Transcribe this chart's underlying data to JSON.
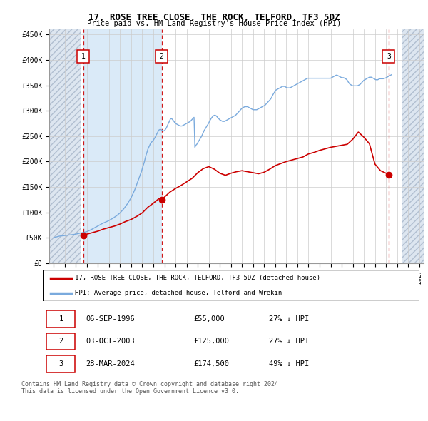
{
  "title": "17, ROSE TREE CLOSE, THE ROCK, TELFORD, TF3 5DZ",
  "subtitle": "Price paid vs. HM Land Registry's House Price Index (HPI)",
  "ylim": [
    0,
    460000
  ],
  "yticks": [
    0,
    50000,
    100000,
    150000,
    200000,
    250000,
    300000,
    350000,
    400000,
    450000
  ],
  "ytick_labels": [
    "£0",
    "£50K",
    "£100K",
    "£150K",
    "£200K",
    "£250K",
    "£300K",
    "£350K",
    "£400K",
    "£450K"
  ],
  "xlim_start": 1993.6,
  "xlim_end": 2027.4,
  "grid_color": "#cccccc",
  "sale_dates_num": [
    1996.68,
    2003.75,
    2024.24
  ],
  "sale_prices": [
    55000,
    125000,
    174500
  ],
  "sale_labels": [
    "1",
    "2",
    "3"
  ],
  "legend_property_label": "17, ROSE TREE CLOSE, THE ROCK, TELFORD, TF3 5DZ (detached house)",
  "legend_hpi_label": "HPI: Average price, detached house, Telford and Wrekin",
  "property_line_color": "#cc0000",
  "hpi_line_color": "#7aaadd",
  "shade_start": 1996.68,
  "shade_end": 2003.75,
  "table_rows": [
    {
      "num": "1",
      "date": "06-SEP-1996",
      "price": "£55,000",
      "hpi": "27% ↓ HPI"
    },
    {
      "num": "2",
      "date": "03-OCT-2003",
      "price": "£125,000",
      "hpi": "27% ↓ HPI"
    },
    {
      "num": "3",
      "date": "28-MAR-2024",
      "price": "£174,500",
      "hpi": "49% ↓ HPI"
    }
  ],
  "footer_text": "Contains HM Land Registry data © Crown copyright and database right 2024.\nThis data is licensed under the Open Government Licence v3.0.",
  "hpi_years": [
    1994,
    1994.08,
    1994.17,
    1994.25,
    1994.33,
    1994.42,
    1994.5,
    1994.58,
    1994.67,
    1994.75,
    1994.83,
    1994.92,
    1995,
    1995.08,
    1995.17,
    1995.25,
    1995.33,
    1995.42,
    1995.5,
    1995.58,
    1995.67,
    1995.75,
    1995.83,
    1995.92,
    1996,
    1996.08,
    1996.17,
    1996.25,
    1996.33,
    1996.42,
    1996.5,
    1996.58,
    1996.67,
    1996.75,
    1996.83,
    1996.92,
    1997,
    1997.08,
    1997.17,
    1997.25,
    1997.33,
    1997.42,
    1997.5,
    1997.58,
    1997.67,
    1997.75,
    1997.83,
    1997.92,
    1998,
    1998.08,
    1998.17,
    1998.25,
    1998.33,
    1998.42,
    1998.5,
    1998.58,
    1998.67,
    1998.75,
    1998.83,
    1998.92,
    1999,
    1999.08,
    1999.17,
    1999.25,
    1999.33,
    1999.42,
    1999.5,
    1999.58,
    1999.67,
    1999.75,
    1999.83,
    1999.92,
    2000,
    2000.08,
    2000.17,
    2000.25,
    2000.33,
    2000.42,
    2000.5,
    2000.58,
    2000.67,
    2000.75,
    2000.83,
    2000.92,
    2001,
    2001.08,
    2001.17,
    2001.25,
    2001.33,
    2001.42,
    2001.5,
    2001.58,
    2001.67,
    2001.75,
    2001.83,
    2001.92,
    2002,
    2002.08,
    2002.17,
    2002.25,
    2002.33,
    2002.42,
    2002.5,
    2002.58,
    2002.67,
    2002.75,
    2002.83,
    2002.92,
    2003,
    2003.08,
    2003.17,
    2003.25,
    2003.33,
    2003.42,
    2003.5,
    2003.58,
    2003.67,
    2003.75,
    2003.83,
    2003.92,
    2004,
    2004.08,
    2004.17,
    2004.25,
    2004.33,
    2004.42,
    2004.5,
    2004.58,
    2004.67,
    2004.75,
    2004.83,
    2004.92,
    2005,
    2005.08,
    2005.17,
    2005.25,
    2005.33,
    2005.42,
    2005.5,
    2005.58,
    2005.67,
    2005.75,
    2005.83,
    2005.92,
    2006,
    2006.08,
    2006.17,
    2006.25,
    2006.33,
    2006.42,
    2006.5,
    2006.58,
    2006.67,
    2006.75,
    2006.83,
    2006.92,
    2007,
    2007.08,
    2007.17,
    2007.25,
    2007.33,
    2007.42,
    2007.5,
    2007.58,
    2007.67,
    2007.75,
    2007.83,
    2007.92,
    2008,
    2008.08,
    2008.17,
    2008.25,
    2008.33,
    2008.42,
    2008.5,
    2008.58,
    2008.67,
    2008.75,
    2008.83,
    2008.92,
    2009,
    2009.08,
    2009.17,
    2009.25,
    2009.33,
    2009.42,
    2009.5,
    2009.58,
    2009.67,
    2009.75,
    2009.83,
    2009.92,
    2010,
    2010.08,
    2010.17,
    2010.25,
    2010.33,
    2010.42,
    2010.5,
    2010.58,
    2010.67,
    2010.75,
    2010.83,
    2010.92,
    2011,
    2011.08,
    2011.17,
    2011.25,
    2011.33,
    2011.42,
    2011.5,
    2011.58,
    2011.67,
    2011.75,
    2011.83,
    2011.92,
    2012,
    2012.08,
    2012.17,
    2012.25,
    2012.33,
    2012.42,
    2012.5,
    2012.58,
    2012.67,
    2012.75,
    2012.83,
    2012.92,
    2013,
    2013.08,
    2013.17,
    2013.25,
    2013.33,
    2013.42,
    2013.5,
    2013.58,
    2013.67,
    2013.75,
    2013.83,
    2013.92,
    2014,
    2014.08,
    2014.17,
    2014.25,
    2014.33,
    2014.42,
    2014.5,
    2014.58,
    2014.67,
    2014.75,
    2014.83,
    2014.92,
    2015,
    2015.08,
    2015.17,
    2015.25,
    2015.33,
    2015.42,
    2015.5,
    2015.58,
    2015.67,
    2015.75,
    2015.83,
    2015.92,
    2016,
    2016.08,
    2016.17,
    2016.25,
    2016.33,
    2016.42,
    2016.5,
    2016.58,
    2016.67,
    2016.75,
    2016.83,
    2016.92,
    2017,
    2017.08,
    2017.17,
    2017.25,
    2017.33,
    2017.42,
    2017.5,
    2017.58,
    2017.67,
    2017.75,
    2017.83,
    2017.92,
    2018,
    2018.08,
    2018.17,
    2018.25,
    2018.33,
    2018.42,
    2018.5,
    2018.58,
    2018.67,
    2018.75,
    2018.83,
    2018.92,
    2019,
    2019.08,
    2019.17,
    2019.25,
    2019.33,
    2019.42,
    2019.5,
    2019.58,
    2019.67,
    2019.75,
    2019.83,
    2019.92,
    2020,
    2020.08,
    2020.17,
    2020.25,
    2020.33,
    2020.42,
    2020.5,
    2020.58,
    2020.67,
    2020.75,
    2020.83,
    2020.92,
    2021,
    2021.08,
    2021.17,
    2021.25,
    2021.33,
    2021.42,
    2021.5,
    2021.58,
    2021.67,
    2021.75,
    2021.83,
    2021.92,
    2022,
    2022.08,
    2022.17,
    2022.25,
    2022.33,
    2022.42,
    2022.5,
    2022.58,
    2022.67,
    2022.75,
    2022.83,
    2022.92,
    2023,
    2023.08,
    2023.17,
    2023.25,
    2023.33,
    2023.42,
    2023.5,
    2023.58,
    2023.67,
    2023.75,
    2023.83,
    2023.92,
    2024,
    2024.08,
    2024.17,
    2024.25,
    2024.33,
    2024.42,
    2024.5
  ],
  "hpi_vals": [
    50000,
    50500,
    51000,
    51500,
    52000,
    52500,
    53000,
    53200,
    53400,
    53600,
    53800,
    54000,
    54200,
    54500,
    54800,
    55000,
    55200,
    55400,
    55600,
    55800,
    56000,
    56200,
    56400,
    56600,
    57000,
    57400,
    57800,
    58200,
    58600,
    59000,
    59400,
    59800,
    60300,
    60800,
    61200,
    61600,
    62000,
    62800,
    63600,
    64500,
    65400,
    66200,
    67200,
    68200,
    69200,
    70200,
    71200,
    72200,
    73200,
    74200,
    75200,
    76200,
    77200,
    78200,
    79000,
    79800,
    80600,
    81400,
    82200,
    83000,
    84000,
    85000,
    86000,
    87000,
    88000,
    89200,
    90500,
    91800,
    93000,
    94500,
    96000,
    97500,
    99000,
    101000,
    103000,
    105000,
    107000,
    109500,
    112000,
    114500,
    117000,
    120000,
    123000,
    126000,
    129000,
    133000,
    137000,
    141000,
    145000,
    150000,
    155000,
    160000,
    165000,
    170000,
    175000,
    180000,
    186000,
    192000,
    198000,
    205000,
    212000,
    218000,
    224000,
    228000,
    232000,
    236000,
    238000,
    240000,
    242000,
    245000,
    248000,
    252000,
    255000,
    259000,
    262000,
    263000,
    263000,
    262000,
    261000,
    260000,
    261000,
    263000,
    266000,
    270000,
    274000,
    278000,
    282000,
    285000,
    284000,
    282000,
    280000,
    277000,
    275000,
    274000,
    273000,
    272000,
    271000,
    270000,
    270000,
    270000,
    271000,
    272000,
    273000,
    274000,
    275000,
    276000,
    277000,
    278000,
    279000,
    281000,
    283000,
    285000,
    287000,
    228000,
    232000,
    234000,
    237000,
    240000,
    243000,
    246000,
    249000,
    253000,
    257000,
    261000,
    264000,
    267000,
    270000,
    273000,
    276000,
    280000,
    283000,
    286000,
    288000,
    290000,
    291000,
    291000,
    290000,
    288000,
    286000,
    284000,
    282000,
    281000,
    280000,
    279000,
    279000,
    279000,
    280000,
    281000,
    282000,
    283000,
    284000,
    285000,
    286000,
    287000,
    288000,
    289000,
    290000,
    291000,
    293000,
    295000,
    297000,
    299000,
    301000,
    303000,
    305000,
    306000,
    307000,
    308000,
    308000,
    308000,
    308000,
    307000,
    306000,
    305000,
    304000,
    303000,
    302000,
    302000,
    302000,
    302000,
    302000,
    303000,
    304000,
    305000,
    306000,
    307000,
    308000,
    309000,
    310000,
    311000,
    313000,
    315000,
    317000,
    319000,
    321000,
    323000,
    326000,
    330000,
    333000,
    336000,
    339000,
    341000,
    342000,
    343000,
    344000,
    345000,
    346000,
    347000,
    348000,
    348000,
    348000,
    347000,
    346000,
    345000,
    345000,
    345000,
    345000,
    346000,
    347000,
    348000,
    349000,
    350000,
    351000,
    352000,
    353000,
    354000,
    355000,
    356000,
    357000,
    358000,
    359000,
    360000,
    361000,
    362000,
    363000,
    364000,
    364000,
    364000,
    364000,
    364000,
    364000,
    364000,
    364000,
    364000,
    364000,
    364000,
    364000,
    364000,
    364000,
    364000,
    364000,
    364000,
    364000,
    364000,
    364000,
    364000,
    364000,
    364000,
    364000,
    364000,
    364000,
    365000,
    366000,
    367000,
    368000,
    369000,
    370000,
    370000,
    369000,
    368000,
    367000,
    366000,
    365000,
    365000,
    365000,
    364000,
    363000,
    362000,
    360000,
    357000,
    354000,
    352000,
    351000,
    350000,
    349000,
    349000,
    349000,
    349000,
    349000,
    349000,
    350000,
    351000,
    352000,
    354000,
    356000,
    358000,
    360000,
    361000,
    362000,
    363000,
    364000,
    365000,
    366000,
    366000,
    366000,
    365000,
    364000,
    363000,
    362000,
    361000,
    361000,
    361000,
    362000,
    363000,
    363000,
    363000,
    363000,
    363000,
    364000,
    364000,
    365000,
    366000,
    367000,
    368000,
    369000,
    370000,
    371000
  ],
  "prop_years": [
    1996.68,
    1997.0,
    1997.5,
    1998.0,
    1998.5,
    1999.0,
    1999.5,
    2000.0,
    2000.5,
    2001.0,
    2001.5,
    2002.0,
    2002.5,
    2003.0,
    2003.5,
    2003.75,
    2004.0,
    2004.5,
    2005.0,
    2005.5,
    2006.0,
    2006.5,
    2007.0,
    2007.5,
    2008.0,
    2008.5,
    2009.0,
    2009.5,
    2010.0,
    2010.5,
    2011.0,
    2011.5,
    2012.0,
    2012.5,
    2013.0,
    2013.5,
    2014.0,
    2014.5,
    2015.0,
    2015.5,
    2016.0,
    2016.5,
    2017.0,
    2017.5,
    2018.0,
    2018.5,
    2019.0,
    2019.5,
    2020.0,
    2020.5,
    2021.0,
    2021.5,
    2022.0,
    2022.5,
    2023.0,
    2023.5,
    2024.0,
    2024.24
  ],
  "prop_vals": [
    55000,
    57000,
    60000,
    63000,
    67000,
    70000,
    73000,
    77000,
    82000,
    86000,
    92000,
    99000,
    110000,
    118000,
    127000,
    125000,
    130000,
    140000,
    147000,
    153000,
    160000,
    167000,
    178000,
    186000,
    190000,
    185000,
    177000,
    173000,
    177000,
    180000,
    182000,
    180000,
    178000,
    176000,
    179000,
    185000,
    192000,
    196000,
    200000,
    203000,
    206000,
    209000,
    215000,
    218000,
    222000,
    225000,
    228000,
    230000,
    232000,
    234000,
    244000,
    258000,
    248000,
    235000,
    195000,
    182000,
    177000,
    174500
  ]
}
